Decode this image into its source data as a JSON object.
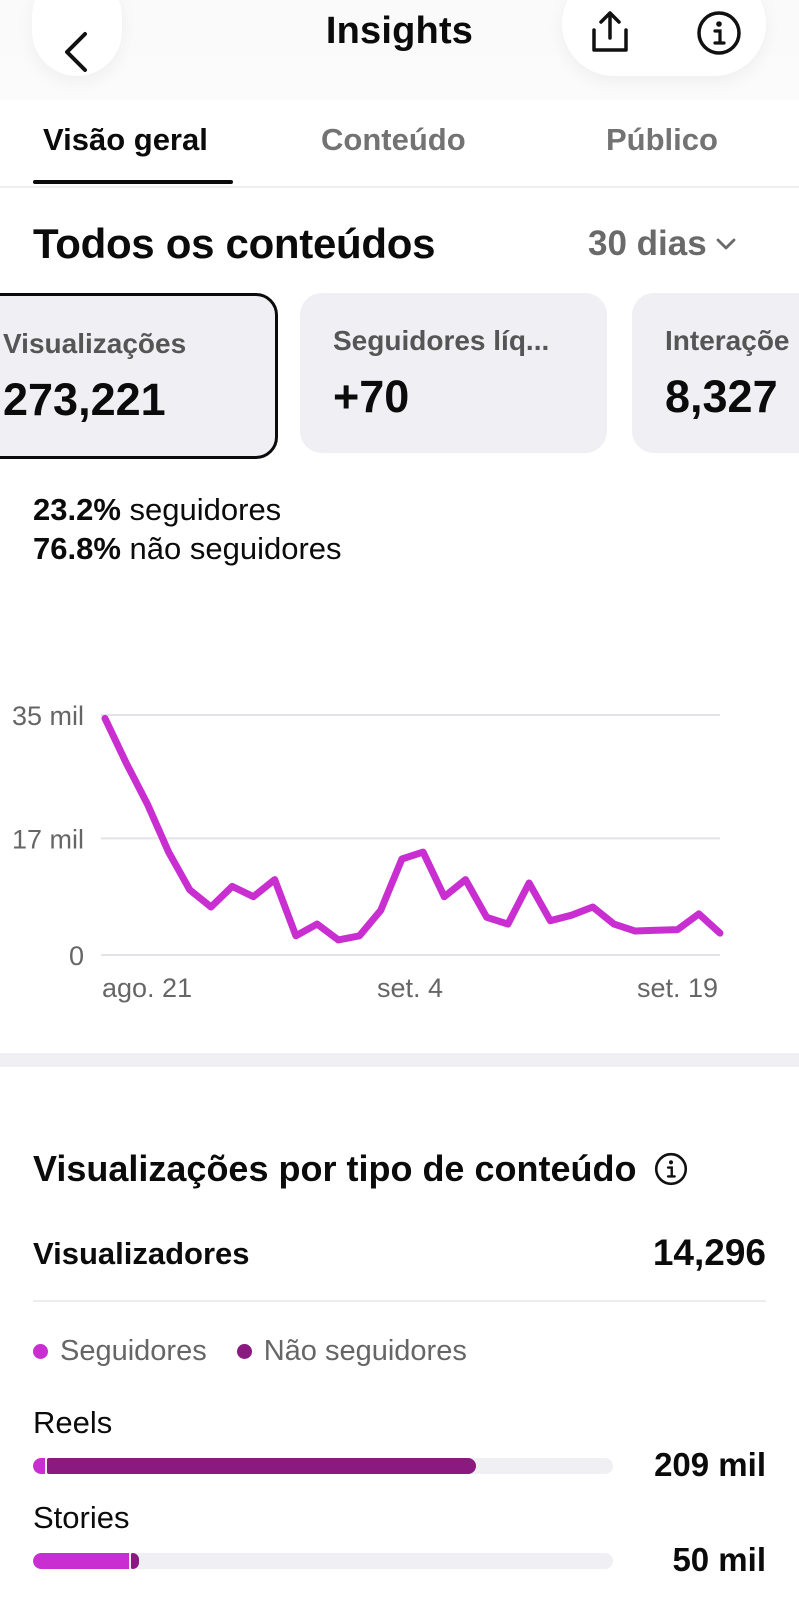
{
  "header": {
    "title": "Insights",
    "back_icon": "chevron-left-icon",
    "share_icon": "share-icon",
    "info_icon": "info-icon"
  },
  "tabs": [
    {
      "label": "Visão geral",
      "active": true
    },
    {
      "label": "Conteúdo",
      "active": false
    },
    {
      "label": "Público",
      "active": false
    }
  ],
  "section": {
    "title": "Todos os conteúdos",
    "range": "30 dias"
  },
  "cards": [
    {
      "label": "Visualizações",
      "value": "273,221",
      "selected": true
    },
    {
      "label": "Seguidores líq...",
      "value": "+70",
      "selected": false
    },
    {
      "label": "Interaçõe",
      "value": "8,327",
      "selected": false
    }
  ],
  "split": {
    "followers_pct": "23.2%",
    "followers_label": "seguidores",
    "nonfollowers_pct": "76.8%",
    "nonfollowers_label": "não seguidores"
  },
  "chart_data": {
    "type": "line",
    "y_ticks": [
      "35 mil",
      "17 mil",
      "0"
    ],
    "y_tick_values": [
      35000,
      17000,
      0
    ],
    "x_tick_labels": [
      "ago. 21",
      "set. 4",
      "set. 19"
    ],
    "ylim": [
      0,
      35000
    ],
    "color": "#c92fd0",
    "series": [
      {
        "values": [
          34500,
          28000,
          22000,
          15000,
          9500,
          7000,
          10000,
          8500,
          11000,
          2800,
          4500,
          2200,
          2800,
          6500,
          14000,
          15000,
          8500,
          11000,
          5500,
          4500,
          10500,
          5000,
          5800,
          7000,
          4500,
          3500,
          3600,
          3700,
          6000,
          3200
        ]
      }
    ]
  },
  "type_section": {
    "title": "Visualizações por tipo de conteúdo",
    "info_icon": "info-icon",
    "viewers_label": "Visualizadores",
    "viewers_value": "14,296",
    "legend": [
      {
        "label": "Seguidores",
        "color": "#c92fd0"
      },
      {
        "label": "Não seguidores",
        "color": "#8a1a80"
      }
    ],
    "bars": [
      {
        "label": "Reels",
        "value": "209 mil",
        "followers_frac": 0.02,
        "nonfollowers_frac": 0.74
      },
      {
        "label": "Stories",
        "value": "50 mil",
        "followers_frac": 0.165,
        "nonfollowers_frac": 0.015
      }
    ]
  }
}
